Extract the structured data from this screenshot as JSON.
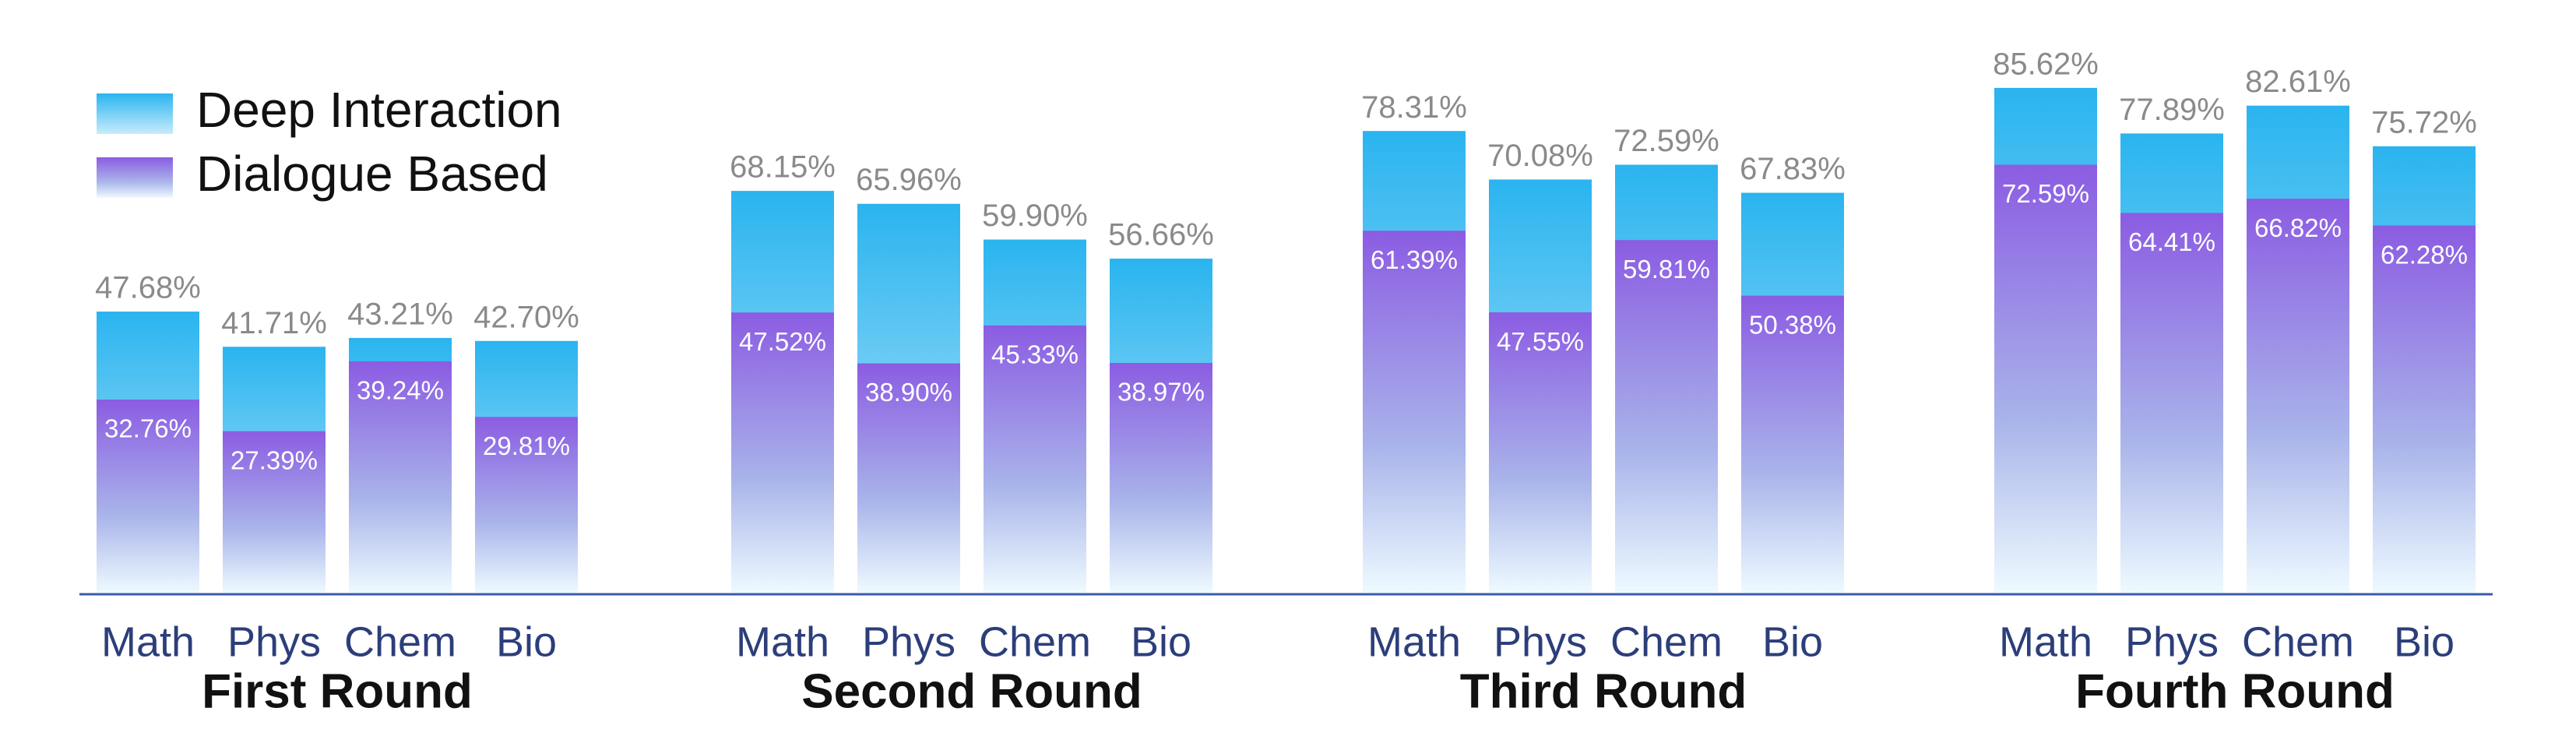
{
  "chart_data": {
    "type": "bar",
    "groups": [
      "First Round",
      "Second Round",
      "Third Round",
      "Fourth Round"
    ],
    "categories": [
      "Math",
      "Phys",
      "Chem",
      "Bio",
      "Math",
      "Phys",
      "Chem",
      "Bio",
      "Math",
      "Phys",
      "Chem",
      "Bio",
      "Math",
      "Phys",
      "Chem",
      "Bio"
    ],
    "series": [
      {
        "name": "Deep Interaction",
        "color": "#2ab4ef",
        "values": [
          47.68,
          41.71,
          43.21,
          42.7,
          68.15,
          65.96,
          59.9,
          56.66,
          78.31,
          70.08,
          72.59,
          67.83,
          85.62,
          77.89,
          82.61,
          75.72
        ],
        "value_labels": [
          "47.68%",
          "41.71%",
          "43.21%",
          "42.70%",
          "68.15%",
          "65.96%",
          "59.90%",
          "56.66%",
          "78.31%",
          "70.08%",
          "72.59%",
          "67.83%",
          "85.62%",
          "77.89%",
          "82.61%",
          "75.72%"
        ]
      },
      {
        "name": "Dialogue Based",
        "color": "#8b5ce2",
        "values": [
          32.76,
          27.39,
          39.24,
          29.81,
          47.52,
          38.9,
          45.33,
          38.97,
          61.39,
          47.55,
          59.81,
          50.38,
          72.59,
          64.41,
          66.82,
          62.28
        ],
        "value_labels": [
          "32.76%",
          "27.39%",
          "39.24%",
          "29.81%",
          "47.52%",
          "38.90%",
          "45.33%",
          "38.97%",
          "61.39%",
          "47.55%",
          "59.81%",
          "50.38%",
          "72.59%",
          "64.41%",
          "66.82%",
          "62.28%"
        ]
      }
    ],
    "legend": "top-left"
  }
}
